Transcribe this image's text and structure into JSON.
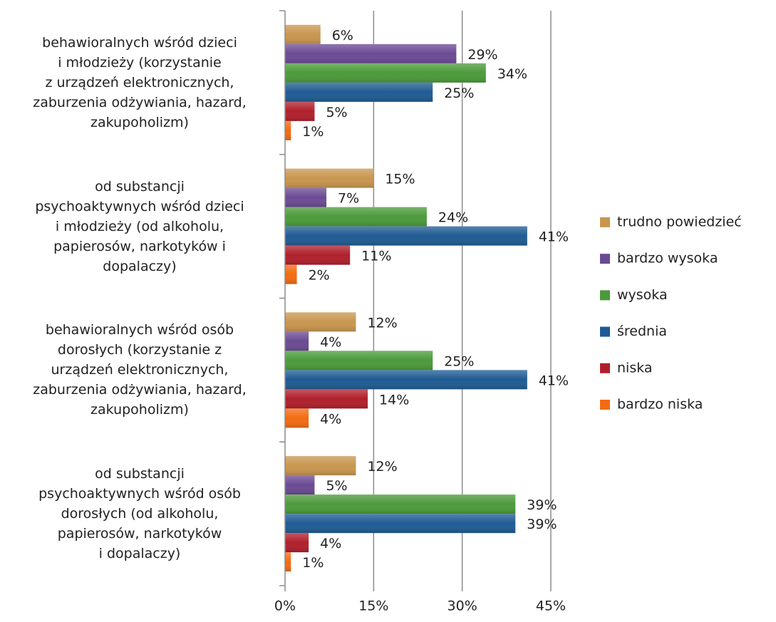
{
  "chart_data": {
    "type": "bar",
    "orientation": "horizontal",
    "categories": [
      "behawioralnych wśród dzieci\ni młodzieży (korzystanie\nz urządzeń elektronicznych,\nzaburzenia odżywiania, hazard,\nzakupoholizm)",
      "od substancji\npsychoaktywnych wśród dzieci\ni młodzieży (od alkoholu,\npapierosów, narkotyków        i\ndopalaczy)",
      "behawioralnych wśród osób\ndorosłych (korzystanie z\nurządzeń elektronicznych,\nzaburzenia odżywiania, hazard,\nzakupoholizm)",
      "od substancji\npsychoaktywnych wśród osób\ndorosłych (od alkoholu,\npapierosów, narkotyków\ni dopalaczy)"
    ],
    "series": [
      {
        "name": "trudno powiedzieć",
        "color": "#c8964f",
        "values": [
          6,
          15,
          12,
          12
        ],
        "value_labels": [
          "6%",
          "15%",
          "12%",
          "12%"
        ]
      },
      {
        "name": "bardzo wysoka",
        "color": "#6b4a94",
        "values": [
          29,
          7,
          4,
          5
        ],
        "value_labels": [
          "29%",
          "7%",
          "4%",
          "5%"
        ]
      },
      {
        "name": "wysoka",
        "color": "#4b9a3a",
        "values": [
          34,
          24,
          25,
          39
        ],
        "value_labels": [
          "34%",
          "24%",
          "25%",
          "39%"
        ]
      },
      {
        "name": "średnia",
        "color": "#1f5b93",
        "values": [
          25,
          41,
          41,
          39
        ],
        "value_labels": [
          "25%",
          "41%",
          "41%",
          "39%"
        ]
      },
      {
        "name": "niska",
        "color": "#b01f2b",
        "values": [
          5,
          11,
          14,
          4
        ],
        "value_labels": [
          "5%",
          "11%",
          "14%",
          "4%"
        ]
      },
      {
        "name": "bardzo niska",
        "color": "#f26b12",
        "values": [
          1,
          2,
          4,
          1
        ],
        "value_labels": [
          "1%",
          "2%",
          "4%",
          "1%"
        ]
      }
    ],
    "xlim": [
      0,
      45
    ],
    "xticks": [
      {
        "value": 0,
        "label": "0%"
      },
      {
        "value": 15,
        "label": "15%"
      },
      {
        "value": 30,
        "label": "30%"
      },
      {
        "value": 45,
        "label": "45%"
      }
    ],
    "grid": true,
    "legend": "right"
  }
}
